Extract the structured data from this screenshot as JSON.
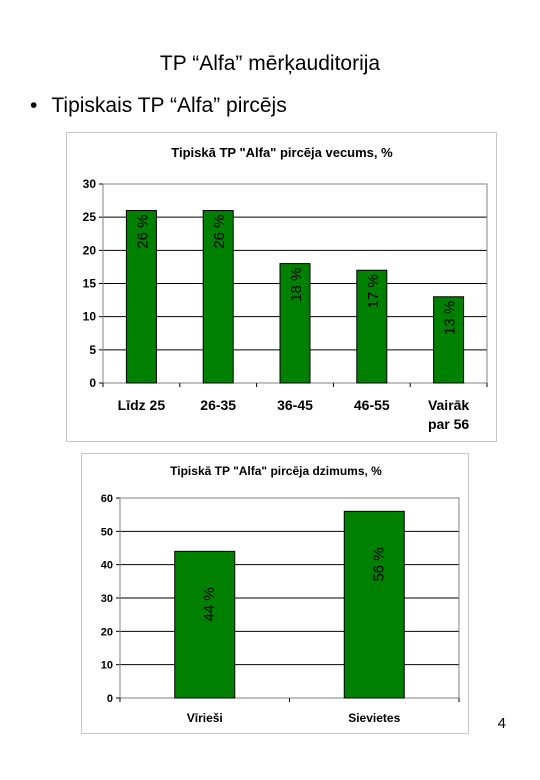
{
  "slide": {
    "title": "TP “Alfa” mērķauditorija",
    "bullet": "Tipiskais TP “Alfa” pircējs",
    "page_number": "4"
  },
  "colors": {
    "bar": "#008000",
    "bar_stroke": "#000000",
    "grid": "#000000"
  },
  "chart_data": [
    {
      "type": "bar",
      "title": "Tipiskā TP \"Alfa\" pircēja vecums, %",
      "categories": [
        "Līdz 25",
        "26-35",
        "36-45",
        "46-55",
        "Vairāk par 56"
      ],
      "category_lines": [
        [
          "Līdz 25"
        ],
        [
          "26-35"
        ],
        [
          "36-45"
        ],
        [
          "46-55"
        ],
        [
          "Vairāk",
          "par 56"
        ]
      ],
      "values": [
        26,
        26,
        18,
        17,
        13
      ],
      "data_labels": [
        "26 %",
        "26 %",
        "18 %",
        "17 %",
        "13 %"
      ],
      "ylim": [
        0,
        30
      ],
      "yticks": [
        0,
        5,
        10,
        15,
        20,
        25,
        30
      ],
      "grid": true,
      "xlabel": "",
      "ylabel": ""
    },
    {
      "type": "bar",
      "title": "Tipiskā TP \"Alfa\" pircēja dzimums, %",
      "categories": [
        "Vīrieši",
        "Sievietes"
      ],
      "category_lines": [
        [
          "Vīrieši"
        ],
        [
          "Sievietes"
        ]
      ],
      "values": [
        44,
        56
      ],
      "data_labels": [
        "44 %",
        "56 %"
      ],
      "ylim": [
        0,
        60
      ],
      "yticks": [
        0,
        10,
        20,
        30,
        40,
        50,
        60
      ],
      "grid": true,
      "xlabel": "",
      "ylabel": ""
    }
  ]
}
